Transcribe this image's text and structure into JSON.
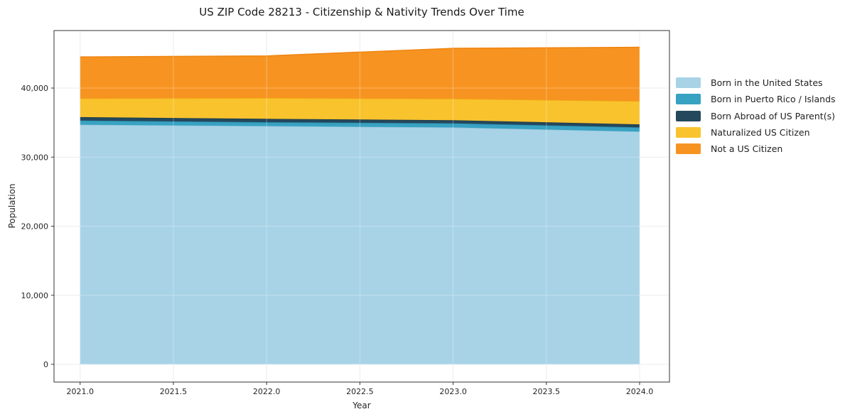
{
  "figure": {
    "title": "US ZIP Code 28213 - Citizenship & Nativity Trends Over Time",
    "xlabel": "Year",
    "ylabel": "Population"
  },
  "chart_data": {
    "type": "area",
    "stacked": true,
    "title": "US ZIP Code 28213 - Citizenship & Nativity Trends Over Time",
    "xlabel": "Year",
    "ylabel": "Population",
    "grid": true,
    "legend_position": "right-outside",
    "x": [
      2021,
      2022,
      2023,
      2024
    ],
    "x_tick_values": [
      2021.0,
      2021.5,
      2022.0,
      2022.5,
      2023.0,
      2023.5,
      2024.0
    ],
    "x_tick_labels": [
      "2021.0",
      "2021.5",
      "2022.0",
      "2022.5",
      "2023.0",
      "2023.5",
      "2024.0"
    ],
    "y_tick_values": [
      0,
      10000,
      20000,
      30000,
      40000
    ],
    "y_tick_labels": [
      "0",
      "10,000",
      "20,000",
      "30,000",
      "40,000"
    ],
    "x_axis_range": [
      2020.86,
      2024.16
    ],
    "y_axis_range": [
      -2570,
      48330
    ],
    "series": [
      {
        "key": "born-in-us",
        "name": "Born in the United States",
        "color": "#a8d3e7",
        "edge": "#90c3da",
        "values": [
          34700,
          34500,
          34300,
          33700
        ]
      },
      {
        "key": "born-puerto-rico",
        "name": "Born in Puerto Rico / Islands",
        "color": "#38a2c2",
        "edge": "#2e8cab",
        "values": [
          600,
          550,
          600,
          600
        ]
      },
      {
        "key": "born-abroad",
        "name": "Born Abroad of US Parent(s)",
        "color": "#24485c",
        "edge": "#1d3b4c",
        "values": [
          500,
          500,
          450,
          450
        ]
      },
      {
        "key": "naturalized",
        "name": "Naturalized US Citizen",
        "color": "#f9c32e",
        "edge": "#eeb011",
        "values": [
          2700,
          3000,
          3100,
          3350
        ]
      },
      {
        "key": "not-citizen",
        "name": "Not a US Citizen",
        "color": "#f79421",
        "edge": "#ef8510",
        "values": [
          6000,
          6100,
          7300,
          7800
        ]
      }
    ],
    "totals": [
      44500,
      44650,
      45750,
      45900
    ],
    "colors": {
      "grid": "#e5e5e5",
      "spine": "#333333",
      "text": "#262626"
    }
  }
}
